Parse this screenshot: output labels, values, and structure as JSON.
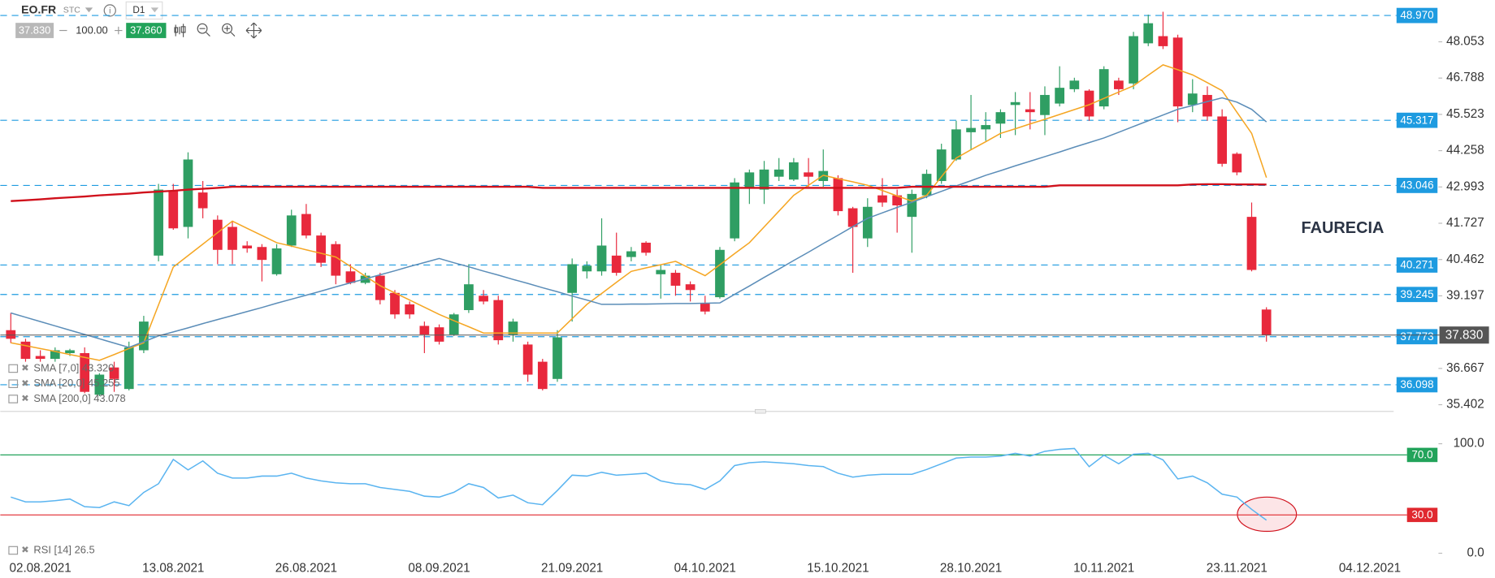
{
  "header": {
    "symbol": "EO.FR",
    "exchange": "STC",
    "timeframe": "D1",
    "bid": "37.830",
    "volume": "100.00",
    "ask": "37.860"
  },
  "chart_data": [
    {
      "type": "candlestick",
      "title": "FAURECIA",
      "categories": [
        null,
        null,
        "02.08.2021",
        null,
        null,
        null,
        null,
        null,
        null,
        null,
        null,
        "13.08.2021",
        null,
        null,
        null,
        null,
        null,
        null,
        null,
        null,
        "26.08.2021",
        null,
        null,
        null,
        null,
        null,
        null,
        null,
        null,
        "08.09.2021",
        null,
        null,
        null,
        null,
        null,
        null,
        null,
        null,
        "21.09.2021",
        null,
        null,
        null,
        null,
        null,
        null,
        null,
        null,
        "04.10.2021",
        null,
        null,
        null,
        null,
        null,
        null,
        null,
        null,
        "15.10.2021",
        null,
        null,
        null,
        null,
        null,
        null,
        null,
        null,
        "28.10.2021",
        null,
        null,
        null,
        null,
        null,
        null,
        null,
        null,
        "10.11.2021",
        null,
        null,
        null,
        null,
        null,
        null,
        null,
        null,
        "23.11.2021",
        null,
        null,
        null,
        null,
        null,
        null,
        null,
        null,
        "04.12.2021"
      ],
      "open": [
        38.0,
        37.6,
        37.1,
        37.0,
        37.2,
        37.2,
        35.75,
        36.7,
        35.95,
        37.3,
        40.6,
        42.85,
        41.6,
        42.8,
        41.85,
        41.6,
        40.95,
        40.9,
        39.95,
        40.95,
        42.05,
        41.3,
        41.0,
        40.05,
        39.65,
        39.9,
        39.3,
        38.9,
        38.15,
        38.1,
        37.85,
        38.7,
        39.2,
        39.05,
        37.85,
        37.5,
        36.9,
        36.3,
        39.3,
        40.05,
        40.05,
        40.6,
        40.55,
        41.05,
        39.95,
        40.0,
        39.6,
        38.95,
        39.15,
        41.2,
        42.95,
        42.9,
        43.35,
        43.25,
        43.5,
        43.2,
        43.3,
        42.25,
        41.2,
        42.7,
        42.7,
        41.95,
        42.7,
        43.2,
        43.95,
        44.9,
        45.0,
        45.2,
        45.85,
        45.7,
        45.5,
        45.9,
        46.4,
        46.35,
        45.8,
        46.7,
        46.6,
        48.0,
        48.25,
        48.2,
        45.85,
        46.2,
        45.45,
        44.15,
        41.95,
        38.72,
        null,
        null,
        null,
        null,
        null,
        null,
        null
      ],
      "high": [
        38.6,
        37.7,
        37.3,
        37.4,
        37.35,
        37.4,
        36.5,
        36.9,
        37.6,
        38.5,
        43.1,
        43.1,
        44.2,
        43.2,
        42.0,
        41.8,
        41.1,
        41.0,
        41.0,
        42.2,
        42.4,
        41.4,
        41.1,
        40.3,
        40.0,
        40.0,
        39.4,
        39.0,
        38.3,
        38.2,
        38.6,
        40.3,
        39.4,
        39.2,
        38.4,
        37.6,
        37.0,
        38.0,
        40.5,
        40.4,
        41.9,
        41.4,
        40.9,
        41.1,
        40.3,
        40.1,
        39.7,
        39.2,
        40.9,
        43.3,
        43.6,
        43.9,
        44.0,
        44.0,
        44.0,
        44.3,
        43.4,
        42.3,
        42.6,
        43.3,
        42.9,
        42.9,
        43.6,
        44.5,
        45.3,
        46.2,
        45.6,
        45.7,
        46.3,
        46.3,
        46.5,
        47.2,
        46.8,
        46.4,
        47.2,
        46.8,
        48.4,
        49.0,
        49.1,
        48.3,
        46.75,
        46.5,
        45.7,
        44.2,
        42.45,
        38.8,
        null,
        null,
        null,
        null,
        null,
        null,
        null
      ],
      "low": [
        37.55,
        36.9,
        36.9,
        36.9,
        37.1,
        35.8,
        35.7,
        35.85,
        35.9,
        37.2,
        40.4,
        41.5,
        41.2,
        41.9,
        40.3,
        40.3,
        40.7,
        39.7,
        39.9,
        40.9,
        41.2,
        40.2,
        39.6,
        39.6,
        39.6,
        38.9,
        38.4,
        38.4,
        37.2,
        37.5,
        37.8,
        38.6,
        38.9,
        37.5,
        37.6,
        36.2,
        35.9,
        36.2,
        38.3,
        39.8,
        39.9,
        39.9,
        40.4,
        40.6,
        39.1,
        39.2,
        39.0,
        38.55,
        39.1,
        41.1,
        42.4,
        42.4,
        43.2,
        43.2,
        43.0,
        43.0,
        42.0,
        40.0,
        40.9,
        42.3,
        41.4,
        40.7,
        42.6,
        43.1,
        43.9,
        44.3,
        44.6,
        44.7,
        44.8,
        45.0,
        44.8,
        45.8,
        46.3,
        45.3,
        45.7,
        46.2,
        46.4,
        47.9,
        47.8,
        45.25,
        45.6,
        45.3,
        43.7,
        43.4,
        40.05,
        37.6,
        null,
        null,
        null,
        null,
        null,
        null,
        null
      ],
      "close": [
        37.7,
        37.0,
        37.0,
        37.3,
        37.3,
        35.85,
        36.45,
        36.3,
        37.4,
        38.3,
        42.9,
        41.55,
        43.95,
        42.25,
        40.8,
        40.8,
        40.85,
        40.45,
        40.85,
        42.0,
        41.3,
        40.35,
        39.9,
        39.65,
        39.9,
        39.05,
        38.55,
        38.55,
        37.85,
        37.6,
        38.55,
        39.6,
        39.0,
        37.65,
        38.3,
        36.45,
        35.95,
        37.75,
        40.3,
        40.25,
        40.95,
        40.0,
        40.75,
        40.7,
        40.1,
        39.55,
        39.4,
        38.65,
        40.8,
        43.15,
        43.5,
        43.6,
        43.6,
        43.85,
        43.35,
        43.55,
        42.15,
        41.6,
        42.3,
        42.45,
        42.35,
        42.75,
        43.45,
        44.3,
        45.0,
        45.05,
        45.15,
        45.6,
        45.95,
        45.6,
        46.2,
        46.45,
        46.7,
        45.45,
        47.1,
        46.4,
        48.25,
        48.7,
        47.9,
        45.8,
        46.25,
        45.45,
        43.8,
        43.5,
        40.1,
        37.83,
        null,
        null,
        null,
        null,
        null,
        null,
        null
      ],
      "up_color": "#2f9e63",
      "down_color": "#e8283c",
      "series": [
        {
          "name": "SMA [7,0] 43.320",
          "color": "#f5a623",
          "values": [
            37.56,
            37.46,
            37.36,
            37.26,
            37.15,
            37.05,
            36.95,
            37.15,
            37.36,
            37.56,
            38.88,
            40.2,
            40.6,
            41.0,
            41.4,
            41.8,
            41.55,
            41.3,
            41.05,
            40.93,
            40.8,
            40.68,
            40.55,
            40.22,
            39.88,
            39.55,
            39.3,
            39.05,
            38.8,
            38.55,
            38.33,
            38.12,
            37.9,
            37.9,
            37.9,
            37.9,
            37.9,
            37.9,
            38.4,
            38.9,
            39.28,
            39.67,
            40.05,
            40.17,
            40.28,
            40.4,
            40.15,
            39.9,
            40.28,
            40.67,
            41.05,
            41.6,
            42.15,
            42.7,
            43.05,
            43.4,
            43.28,
            43.17,
            43.05,
            42.87,
            42.68,
            42.5,
            42.7,
            43.35,
            44.0,
            44.29,
            44.57,
            44.86,
            45.02,
            45.19,
            45.35,
            45.52,
            45.69,
            45.86,
            46.08,
            46.3,
            46.52,
            46.89,
            47.25,
            47.08,
            46.9,
            46.63,
            46.35,
            45.6,
            44.86,
            43.32,
            null,
            null,
            null,
            null,
            null,
            null,
            null
          ]
        },
        {
          "name": "SMA [20,0] 45.255",
          "color": "#5b8db8",
          "values": [
            38.6,
            38.45,
            38.3,
            38.15,
            38.0,
            37.85,
            37.7,
            37.55,
            37.4,
            37.6,
            37.8,
            37.94,
            38.08,
            38.23,
            38.37,
            38.51,
            38.65,
            38.79,
            38.94,
            39.08,
            39.22,
            39.36,
            39.51,
            39.65,
            39.79,
            39.93,
            40.07,
            40.22,
            40.36,
            40.5,
            40.35,
            40.21,
            40.06,
            39.92,
            39.77,
            39.63,
            39.48,
            39.34,
            39.19,
            39.05,
            38.9,
            38.9,
            38.91,
            38.91,
            38.92,
            38.93,
            38.93,
            38.94,
            38.95,
            39.25,
            39.54,
            39.84,
            40.13,
            40.43,
            40.72,
            41.02,
            41.31,
            41.61,
            41.9,
            42.09,
            42.28,
            42.46,
            42.65,
            42.84,
            43.03,
            43.21,
            43.4,
            43.56,
            43.73,
            43.89,
            44.05,
            44.21,
            44.38,
            44.54,
            44.7,
            44.9,
            45.1,
            45.3,
            45.5,
            45.7,
            45.83,
            45.97,
            46.1,
            45.95,
            45.7,
            45.26,
            null,
            null,
            null,
            null,
            null,
            null,
            null
          ]
        },
        {
          "name": "SMA [200,0] 43.078",
          "color": "#d0101b",
          "values": [
            42.5,
            42.53,
            42.56,
            42.6,
            42.63,
            42.66,
            42.7,
            42.73,
            42.76,
            42.8,
            42.83,
            42.86,
            42.9,
            42.93,
            42.96,
            43.0,
            43.0,
            43.0,
            43.0,
            43.0,
            43.0,
            43.0,
            43.0,
            43.0,
            43.0,
            43.0,
            43.0,
            43.0,
            43.0,
            43.0,
            43.0,
            43.0,
            43.0,
            43.0,
            43.0,
            43.0,
            42.96,
            42.96,
            42.96,
            42.96,
            42.96,
            42.96,
            42.96,
            42.96,
            42.96,
            42.96,
            42.96,
            42.96,
            42.96,
            42.96,
            42.96,
            42.96,
            42.96,
            42.96,
            42.96,
            42.96,
            42.96,
            42.96,
            42.96,
            42.96,
            42.96,
            43.0,
            43.0,
            43.0,
            43.0,
            43.0,
            43.0,
            43.0,
            43.0,
            43.0,
            43.0,
            43.05,
            43.05,
            43.05,
            43.05,
            43.05,
            43.05,
            43.05,
            43.05,
            43.05,
            43.08,
            43.09,
            43.09,
            43.08,
            43.08,
            43.078,
            null,
            null,
            null,
            null,
            null,
            null,
            null
          ]
        }
      ],
      "ylim": [
        35.17,
        49.51
      ],
      "yticks": [
        35.402,
        36.667,
        39.197,
        40.462,
        41.727,
        42.993,
        44.258,
        45.523,
        46.788,
        48.053
      ],
      "levels": [
        {
          "value": 48.97,
          "label": "48.970"
        },
        45.317,
        43.046,
        40.271,
        39.245,
        37.773,
        36.098
      ],
      "level_color": "#1e9be0",
      "last_price": {
        "value": 37.83,
        "label": "37.830"
      }
    },
    {
      "type": "line",
      "series": [
        {
          "name": "RSI [14] 26.5",
          "color": "#5ab4f0",
          "values": [
            41.9,
            38.7,
            38.7,
            39.5,
            40.6,
            35.5,
            34.9,
            38.7,
            36.2,
            45.0,
            50.8,
            67.0,
            60.0,
            66.0,
            57.8,
            54.6,
            54.6,
            55.9,
            55.9,
            57.8,
            54.6,
            52.7,
            51.4,
            50.8,
            50.8,
            48.3,
            47.0,
            45.7,
            42.5,
            41.9,
            45.1,
            50.8,
            48.3,
            41.3,
            43.2,
            38.1,
            36.8,
            46.3,
            56.5,
            55.9,
            58.4,
            56.5,
            57.1,
            57.8,
            52.7,
            50.8,
            50.2,
            47.0,
            52.7,
            62.9,
            64.8,
            65.4,
            64.8,
            64.1,
            62.9,
            62.2,
            57.8,
            55.2,
            56.5,
            57.1,
            57.1,
            57.1,
            60.3,
            64.1,
            67.9,
            68.6,
            68.6,
            69.2,
            71.1,
            69.2,
            72.4,
            73.7,
            74.3,
            62.2,
            69.8,
            64.1,
            70.5,
            71.1,
            66.7,
            54.0,
            55.9,
            51.4,
            43.8,
            41.9,
            33.7,
            26.5,
            null,
            null,
            null,
            null,
            null,
            null,
            null
          ]
        }
      ],
      "ylim": [
        0,
        100
      ],
      "yticks": [
        {
          "value": 100,
          "label": "100.0"
        },
        {
          "value": 0,
          "label": "0.0"
        }
      ],
      "levels": [
        {
          "value": 70,
          "label": "70.0",
          "color": "#22a35a"
        },
        {
          "value": 30,
          "label": "30.0",
          "color": "#e0282f"
        }
      ]
    }
  ]
}
